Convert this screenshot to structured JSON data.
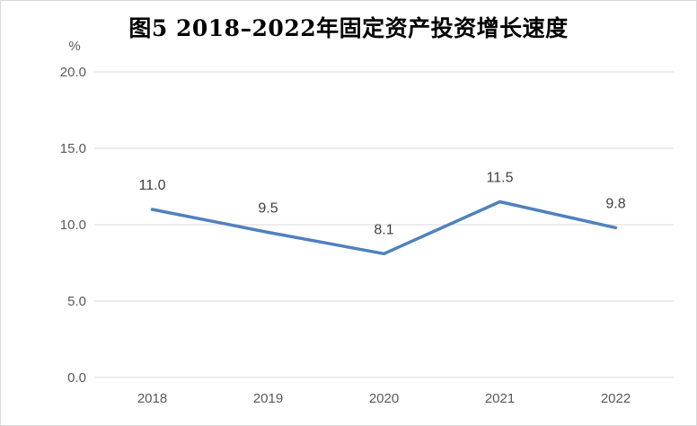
{
  "chart_data": {
    "type": "line",
    "title": "图5  2018–2022年固定资产投资增长速度",
    "y_unit": "%",
    "categories": [
      "2018",
      "2019",
      "2020",
      "2021",
      "2022"
    ],
    "series": [
      {
        "values": [
          11.0,
          9.5,
          8.1,
          11.5,
          9.8
        ],
        "color": "#4f81bd"
      }
    ],
    "data_labels": [
      "11.0",
      "9.5",
      "8.1",
      "11.5",
      "9.8"
    ],
    "ylim": [
      0,
      20
    ],
    "y_ticks": [
      "0.0",
      "5.0",
      "10.0",
      "15.0",
      "20.0"
    ],
    "grid": true,
    "legend": "none"
  }
}
